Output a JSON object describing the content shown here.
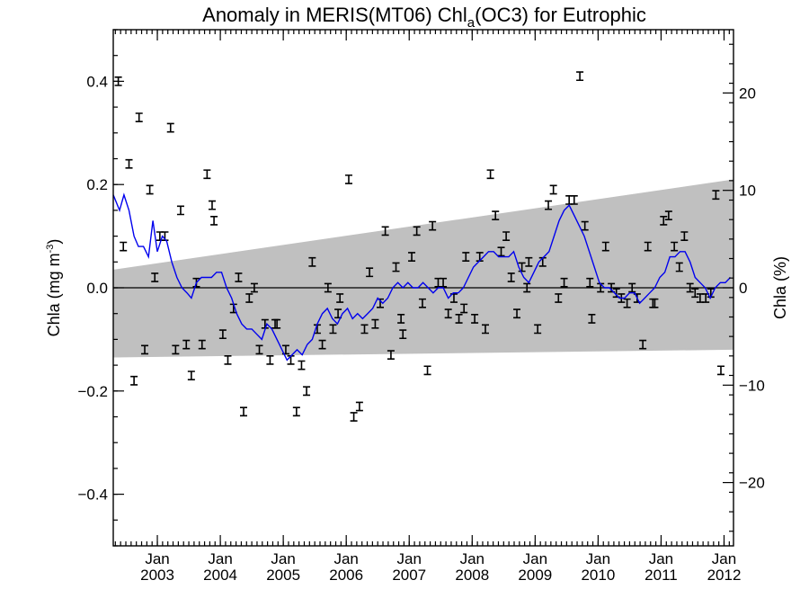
{
  "chart_data": {
    "type": "scatter",
    "title": {
      "main": "Anomaly in MERIS(MT06) Chl",
      "sub": "a",
      "rest": "(OC3) for Eutrophic"
    },
    "ylabel_left": {
      "text": "Chla (mg m",
      "sup": "-3",
      "end": ")"
    },
    "ylabel_right": "Chla (%)",
    "xlim": [
      2002.3,
      2012.15
    ],
    "ylim": [
      -0.5,
      0.5
    ],
    "y2lim": [
      -26.5,
      26.5
    ],
    "x_tick_years": [
      2003,
      2004,
      2005,
      2006,
      2007,
      2008,
      2009,
      2010,
      2011,
      2012
    ],
    "x_tick_top_label": "Jan",
    "y_ticks": [
      -0.4,
      -0.2,
      0.0,
      0.2,
      0.4
    ],
    "y_tick_labels": [
      "−0.4",
      "−0.2",
      "0.0",
      "0.2",
      "0.4"
    ],
    "y2_ticks": [
      -20,
      -10,
      0,
      10,
      20
    ],
    "y2_tick_labels": [
      "−20",
      "−10",
      "0",
      "10",
      "20"
    ],
    "zero_line": 0.0,
    "trend_band": {
      "start": {
        "x": 2002.3,
        "lower": -0.135,
        "upper": 0.035
      },
      "end": {
        "x": 2012.15,
        "lower": -0.12,
        "upper": 0.21
      },
      "color": "#c0c0c0"
    },
    "series": [
      {
        "kind": "errorbar-points",
        "color": "#000000",
        "half_error": 0.008,
        "points": [
          {
            "x": 2002.38,
            "y": 0.4
          },
          {
            "x": 2002.46,
            "y": 0.08
          },
          {
            "x": 2002.55,
            "y": 0.24
          },
          {
            "x": 2002.63,
            "y": -0.18
          },
          {
            "x": 2002.71,
            "y": 0.33
          },
          {
            "x": 2002.8,
            "y": -0.12
          },
          {
            "x": 2002.88,
            "y": 0.19
          },
          {
            "x": 2002.96,
            "y": 0.02
          },
          {
            "x": 2003.04,
            "y": 0.1
          },
          {
            "x": 2003.12,
            "y": 0.1
          },
          {
            "x": 2003.21,
            "y": 0.31
          },
          {
            "x": 2003.29,
            "y": -0.12
          },
          {
            "x": 2003.37,
            "y": 0.15
          },
          {
            "x": 2003.46,
            "y": -0.11
          },
          {
            "x": 2003.54,
            "y": -0.17
          },
          {
            "x": 2003.62,
            "y": 0.01
          },
          {
            "x": 2003.71,
            "y": -0.11
          },
          {
            "x": 2003.79,
            "y": 0.22
          },
          {
            "x": 2003.87,
            "y": 0.16
          },
          {
            "x": 2003.9,
            "y": 0.13
          },
          {
            "x": 2004.04,
            "y": -0.09
          },
          {
            "x": 2004.12,
            "y": -0.14
          },
          {
            "x": 2004.21,
            "y": -0.04
          },
          {
            "x": 2004.29,
            "y": 0.02
          },
          {
            "x": 2004.37,
            "y": -0.24
          },
          {
            "x": 2004.46,
            "y": -0.02
          },
          {
            "x": 2004.54,
            "y": 0.0
          },
          {
            "x": 2004.62,
            "y": -0.12
          },
          {
            "x": 2004.71,
            "y": -0.07
          },
          {
            "x": 2004.79,
            "y": -0.14
          },
          {
            "x": 2004.87,
            "y": -0.07
          },
          {
            "x": 2004.9,
            "y": -0.07
          },
          {
            "x": 2005.04,
            "y": -0.12
          },
          {
            "x": 2005.12,
            "y": -0.14
          },
          {
            "x": 2005.21,
            "y": -0.24
          },
          {
            "x": 2005.29,
            "y": -0.15
          },
          {
            "x": 2005.37,
            "y": -0.2
          },
          {
            "x": 2005.46,
            "y": 0.05
          },
          {
            "x": 2005.54,
            "y": -0.08
          },
          {
            "x": 2005.62,
            "y": -0.11
          },
          {
            "x": 2005.71,
            "y": 0.0
          },
          {
            "x": 2005.79,
            "y": -0.08
          },
          {
            "x": 2005.87,
            "y": -0.05
          },
          {
            "x": 2005.9,
            "y": -0.02
          },
          {
            "x": 2006.04,
            "y": 0.21
          },
          {
            "x": 2006.12,
            "y": -0.25
          },
          {
            "x": 2006.21,
            "y": -0.23
          },
          {
            "x": 2006.29,
            "y": -0.08
          },
          {
            "x": 2006.37,
            "y": 0.03
          },
          {
            "x": 2006.46,
            "y": -0.07
          },
          {
            "x": 2006.54,
            "y": -0.03
          },
          {
            "x": 2006.62,
            "y": 0.11
          },
          {
            "x": 2006.71,
            "y": -0.13
          },
          {
            "x": 2006.79,
            "y": 0.04
          },
          {
            "x": 2006.87,
            "y": -0.06
          },
          {
            "x": 2006.9,
            "y": -0.09
          },
          {
            "x": 2007.04,
            "y": 0.06
          },
          {
            "x": 2007.12,
            "y": 0.11
          },
          {
            "x": 2007.21,
            "y": -0.03
          },
          {
            "x": 2007.29,
            "y": -0.16
          },
          {
            "x": 2007.37,
            "y": 0.12
          },
          {
            "x": 2007.46,
            "y": 0.01
          },
          {
            "x": 2007.54,
            "y": 0.01
          },
          {
            "x": 2007.62,
            "y": -0.05
          },
          {
            "x": 2007.71,
            "y": -0.02
          },
          {
            "x": 2007.79,
            "y": -0.06
          },
          {
            "x": 2007.87,
            "y": -0.04
          },
          {
            "x": 2007.9,
            "y": 0.06
          },
          {
            "x": 2008.04,
            "y": -0.06
          },
          {
            "x": 2008.12,
            "y": 0.06
          },
          {
            "x": 2008.21,
            "y": -0.08
          },
          {
            "x": 2008.29,
            "y": 0.22
          },
          {
            "x": 2008.37,
            "y": 0.14
          },
          {
            "x": 2008.46,
            "y": 0.07
          },
          {
            "x": 2008.54,
            "y": 0.1
          },
          {
            "x": 2008.62,
            "y": 0.02
          },
          {
            "x": 2008.71,
            "y": -0.05
          },
          {
            "x": 2008.79,
            "y": 0.04
          },
          {
            "x": 2008.87,
            "y": 0.0
          },
          {
            "x": 2008.9,
            "y": 0.05
          },
          {
            "x": 2009.04,
            "y": -0.08
          },
          {
            "x": 2009.12,
            "y": 0.05
          },
          {
            "x": 2009.21,
            "y": 0.16
          },
          {
            "x": 2009.29,
            "y": 0.19
          },
          {
            "x": 2009.37,
            "y": -0.02
          },
          {
            "x": 2009.46,
            "y": 0.01
          },
          {
            "x": 2009.54,
            "y": 0.17
          },
          {
            "x": 2009.62,
            "y": 0.17
          },
          {
            "x": 2009.71,
            "y": 0.41
          },
          {
            "x": 2009.79,
            "y": 0.12
          },
          {
            "x": 2009.87,
            "y": 0.01
          },
          {
            "x": 2009.9,
            "y": -0.06
          },
          {
            "x": 2010.04,
            "y": 0.0
          },
          {
            "x": 2010.12,
            "y": 0.08
          },
          {
            "x": 2010.21,
            "y": 0.0
          },
          {
            "x": 2010.29,
            "y": -0.01
          },
          {
            "x": 2010.37,
            "y": -0.02
          },
          {
            "x": 2010.46,
            "y": -0.03
          },
          {
            "x": 2010.54,
            "y": 0.0
          },
          {
            "x": 2010.62,
            "y": -0.02
          },
          {
            "x": 2010.71,
            "y": -0.11
          },
          {
            "x": 2010.79,
            "y": 0.08
          },
          {
            "x": 2010.87,
            "y": -0.03
          },
          {
            "x": 2010.9,
            "y": -0.03
          },
          {
            "x": 2011.04,
            "y": 0.13
          },
          {
            "x": 2011.12,
            "y": 0.14
          },
          {
            "x": 2011.21,
            "y": 0.08
          },
          {
            "x": 2011.29,
            "y": 0.04
          },
          {
            "x": 2011.37,
            "y": 0.1
          },
          {
            "x": 2011.46,
            "y": 0.0
          },
          {
            "x": 2011.54,
            "y": -0.01
          },
          {
            "x": 2011.62,
            "y": -0.02
          },
          {
            "x": 2011.71,
            "y": -0.02
          },
          {
            "x": 2011.79,
            "y": -0.01
          },
          {
            "x": 2011.87,
            "y": 0.18
          },
          {
            "x": 2011.95,
            "y": -0.16
          }
        ]
      },
      {
        "kind": "line",
        "color": "#0000ee",
        "points": [
          [
            2002.3,
            0.18
          ],
          [
            2002.4,
            0.15
          ],
          [
            2002.47,
            0.18
          ],
          [
            2002.55,
            0.15
          ],
          [
            2002.63,
            0.1
          ],
          [
            2002.7,
            0.08
          ],
          [
            2002.78,
            0.08
          ],
          [
            2002.86,
            0.06
          ],
          [
            2002.93,
            0.13
          ],
          [
            2003.0,
            0.07
          ],
          [
            2003.08,
            0.1
          ],
          [
            2003.15,
            0.09
          ],
          [
            2003.23,
            0.05
          ],
          [
            2003.31,
            0.02
          ],
          [
            2003.39,
            0.0
          ],
          [
            2003.47,
            -0.01
          ],
          [
            2003.54,
            -0.02
          ],
          [
            2003.62,
            0.01
          ],
          [
            2003.7,
            0.02
          ],
          [
            2003.78,
            0.02
          ],
          [
            2003.86,
            0.02
          ],
          [
            2003.94,
            0.03
          ],
          [
            2004.02,
            0.03
          ],
          [
            2004.1,
            0.0
          ],
          [
            2004.18,
            -0.02
          ],
          [
            2004.26,
            -0.05
          ],
          [
            2004.34,
            -0.07
          ],
          [
            2004.42,
            -0.08
          ],
          [
            2004.5,
            -0.08
          ],
          [
            2004.58,
            -0.09
          ],
          [
            2004.66,
            -0.1
          ],
          [
            2004.74,
            -0.07
          ],
          [
            2004.82,
            -0.08
          ],
          [
            2004.9,
            -0.1
          ],
          [
            2004.98,
            -0.12
          ],
          [
            2005.06,
            -0.14
          ],
          [
            2005.14,
            -0.13
          ],
          [
            2005.22,
            -0.12
          ],
          [
            2005.3,
            -0.13
          ],
          [
            2005.38,
            -0.11
          ],
          [
            2005.46,
            -0.1
          ],
          [
            2005.54,
            -0.07
          ],
          [
            2005.62,
            -0.05
          ],
          [
            2005.7,
            -0.04
          ],
          [
            2005.78,
            -0.06
          ],
          [
            2005.86,
            -0.07
          ],
          [
            2005.94,
            -0.05
          ],
          [
            2006.02,
            -0.04
          ],
          [
            2006.1,
            -0.06
          ],
          [
            2006.18,
            -0.05
          ],
          [
            2006.26,
            -0.06
          ],
          [
            2006.34,
            -0.05
          ],
          [
            2006.42,
            -0.04
          ],
          [
            2006.5,
            -0.02
          ],
          [
            2006.58,
            -0.03
          ],
          [
            2006.66,
            -0.02
          ],
          [
            2006.74,
            0.0
          ],
          [
            2006.82,
            0.01
          ],
          [
            2006.9,
            0.0
          ],
          [
            2006.98,
            0.01
          ],
          [
            2007.06,
            0.0
          ],
          [
            2007.14,
            0.0
          ],
          [
            2007.22,
            0.01
          ],
          [
            2007.3,
            0.0
          ],
          [
            2007.38,
            -0.01
          ],
          [
            2007.46,
            0.0
          ],
          [
            2007.54,
            0.0
          ],
          [
            2007.62,
            -0.02
          ],
          [
            2007.7,
            -0.01
          ],
          [
            2007.78,
            -0.01
          ],
          [
            2007.86,
            0.0
          ],
          [
            2007.94,
            0.02
          ],
          [
            2008.02,
            0.04
          ],
          [
            2008.1,
            0.05
          ],
          [
            2008.18,
            0.06
          ],
          [
            2008.26,
            0.07
          ],
          [
            2008.34,
            0.07
          ],
          [
            2008.42,
            0.06
          ],
          [
            2008.5,
            0.06
          ],
          [
            2008.58,
            0.06
          ],
          [
            2008.66,
            0.07
          ],
          [
            2008.74,
            0.04
          ],
          [
            2008.82,
            0.02
          ],
          [
            2008.9,
            0.01
          ],
          [
            2008.98,
            0.03
          ],
          [
            2009.06,
            0.05
          ],
          [
            2009.14,
            0.06
          ],
          [
            2009.22,
            0.07
          ],
          [
            2009.3,
            0.1
          ],
          [
            2009.38,
            0.13
          ],
          [
            2009.46,
            0.15
          ],
          [
            2009.54,
            0.16
          ],
          [
            2009.62,
            0.14
          ],
          [
            2009.7,
            0.12
          ],
          [
            2009.78,
            0.1
          ],
          [
            2009.86,
            0.07
          ],
          [
            2009.94,
            0.04
          ],
          [
            2010.02,
            0.01
          ],
          [
            2010.1,
            0.0
          ],
          [
            2010.18,
            0.0
          ],
          [
            2010.26,
            -0.01
          ],
          [
            2010.34,
            -0.02
          ],
          [
            2010.42,
            -0.02
          ],
          [
            2010.5,
            -0.01
          ],
          [
            2010.58,
            -0.01
          ],
          [
            2010.66,
            -0.03
          ],
          [
            2010.74,
            -0.02
          ],
          [
            2010.82,
            -0.01
          ],
          [
            2010.9,
            0.0
          ],
          [
            2010.98,
            0.02
          ],
          [
            2011.06,
            0.03
          ],
          [
            2011.14,
            0.06
          ],
          [
            2011.22,
            0.06
          ],
          [
            2011.3,
            0.07
          ],
          [
            2011.38,
            0.07
          ],
          [
            2011.46,
            0.05
          ],
          [
            2011.54,
            0.02
          ],
          [
            2011.62,
            0.01
          ],
          [
            2011.7,
            0.0
          ],
          [
            2011.78,
            -0.02
          ],
          [
            2011.86,
            0.0
          ],
          [
            2011.94,
            0.01
          ],
          [
            2012.02,
            0.01
          ],
          [
            2012.1,
            0.02
          ]
        ]
      }
    ]
  }
}
